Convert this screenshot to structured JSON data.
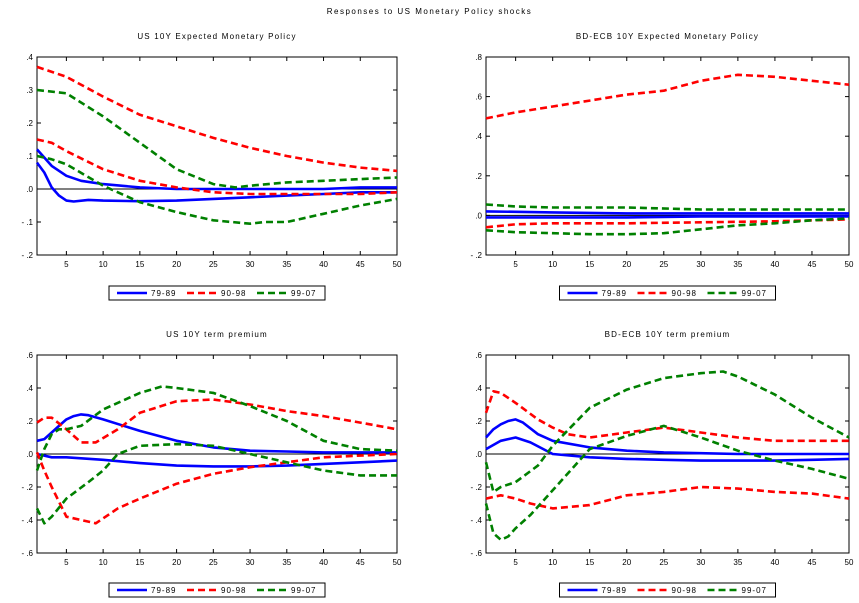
{
  "title": "Responses to US Monetary Policy shocks",
  "legend_labels": [
    "79-89",
    "90-98",
    "99-07"
  ],
  "colors": {
    "79-89": "#0000ff",
    "90-98": "#ff0000",
    "99-07": "#008000",
    "zero_line": "#000000"
  },
  "chart_data": [
    {
      "type": "line",
      "title": "US 10Y Expected Monetary Policy",
      "x_ticks": [
        5,
        10,
        15,
        20,
        25,
        30,
        35,
        40,
        45,
        50
      ],
      "xlim": [
        1,
        50
      ],
      "ylim": [
        -0.2,
        0.4
      ],
      "y_ticks": [
        -0.2,
        -0.1,
        0.0,
        0.1,
        0.2,
        0.3,
        0.4
      ],
      "y_tick_labels": [
        "- .2",
        "- .1",
        ".0",
        ".1",
        ".2",
        ".3",
        ".4"
      ],
      "legend_position": "bottom-center",
      "series": [
        {
          "name": "79-89",
          "style": "solid",
          "band": "upper",
          "x": [
            1,
            3,
            5,
            7,
            10,
            15,
            20,
            25,
            30,
            35,
            40,
            45,
            50
          ],
          "values": [
            0.12,
            0.07,
            0.04,
            0.025,
            0.015,
            0.005,
            0.0,
            0.0,
            0.0,
            0.0,
            0.0,
            0.005,
            0.005
          ]
        },
        {
          "name": "79-89",
          "style": "solid",
          "band": "lower",
          "x": [
            1,
            2,
            3,
            4,
            5,
            6,
            8,
            10,
            15,
            20,
            25,
            30,
            35,
            40,
            45,
            50
          ],
          "values": [
            0.08,
            0.05,
            0.005,
            -0.02,
            -0.035,
            -0.038,
            -0.033,
            -0.035,
            -0.037,
            -0.035,
            -0.03,
            -0.025,
            -0.02,
            -0.015,
            -0.01,
            -0.01
          ]
        },
        {
          "name": "90-98",
          "style": "dashed",
          "band": "upper",
          "x": [
            1,
            5,
            10,
            15,
            20,
            25,
            30,
            35,
            40,
            45,
            50
          ],
          "values": [
            0.37,
            0.34,
            0.28,
            0.225,
            0.19,
            0.155,
            0.125,
            0.1,
            0.08,
            0.065,
            0.055
          ]
        },
        {
          "name": "90-98",
          "style": "dashed",
          "band": "lower",
          "x": [
            1,
            3,
            5,
            10,
            15,
            20,
            25,
            30,
            35,
            40,
            45,
            50
          ],
          "values": [
            0.15,
            0.14,
            0.115,
            0.06,
            0.025,
            0.005,
            -0.01,
            -0.015,
            -0.015,
            -0.015,
            -0.015,
            -0.01
          ]
        },
        {
          "name": "99-07",
          "style": "dashed",
          "band": "upper",
          "x": [
            1,
            5,
            10,
            15,
            20,
            25,
            28,
            30,
            35,
            40,
            45,
            50
          ],
          "values": [
            0.3,
            0.29,
            0.22,
            0.14,
            0.06,
            0.015,
            0.005,
            0.01,
            0.02,
            0.025,
            0.03,
            0.035
          ]
        },
        {
          "name": "99-07",
          "style": "dashed",
          "band": "lower",
          "x": [
            1,
            3,
            5,
            10,
            15,
            20,
            25,
            30,
            32,
            35,
            40,
            45,
            50
          ],
          "values": [
            0.1,
            0.09,
            0.075,
            0.01,
            -0.04,
            -0.07,
            -0.095,
            -0.105,
            -0.1,
            -0.1,
            -0.075,
            -0.05,
            -0.03
          ]
        }
      ]
    },
    {
      "type": "line",
      "title": "BD-ECB 10Y Expected Monetary Policy",
      "x_ticks": [
        5,
        10,
        15,
        20,
        25,
        30,
        35,
        40,
        45,
        50
      ],
      "xlim": [
        1,
        50
      ],
      "ylim": [
        -0.2,
        0.8
      ],
      "y_ticks": [
        -0.2,
        0.0,
        0.2,
        0.4,
        0.6,
        0.8
      ],
      "y_tick_labels": [
        "- .2",
        ".0",
        ".2",
        ".4",
        ".6",
        ".8"
      ],
      "legend_position": "bottom-center",
      "series": [
        {
          "name": "79-89",
          "style": "solid",
          "band": "upper",
          "x": [
            1,
            10,
            20,
            30,
            40,
            50
          ],
          "values": [
            0.02,
            0.015,
            0.01,
            0.01,
            0.01,
            0.01
          ]
        },
        {
          "name": "79-89",
          "style": "solid",
          "band": "lower",
          "x": [
            1,
            10,
            20,
            30,
            40,
            50
          ],
          "values": [
            -0.01,
            -0.01,
            -0.01,
            -0.005,
            -0.005,
            -0.005
          ]
        },
        {
          "name": "90-98",
          "style": "dashed",
          "band": "upper",
          "x": [
            1,
            5,
            10,
            15,
            20,
            25,
            30,
            35,
            40,
            45,
            50
          ],
          "values": [
            0.49,
            0.52,
            0.55,
            0.58,
            0.61,
            0.63,
            0.68,
            0.71,
            0.7,
            0.68,
            0.66
          ]
        },
        {
          "name": "90-98",
          "style": "dashed",
          "band": "lower",
          "x": [
            1,
            5,
            10,
            20,
            30,
            40,
            50
          ],
          "values": [
            -0.06,
            -0.045,
            -0.04,
            -0.04,
            -0.035,
            -0.03,
            -0.02
          ]
        },
        {
          "name": "99-07",
          "style": "dashed",
          "band": "upper",
          "x": [
            1,
            5,
            10,
            20,
            30,
            40,
            50
          ],
          "values": [
            0.055,
            0.045,
            0.04,
            0.04,
            0.03,
            0.03,
            0.03
          ]
        },
        {
          "name": "99-07",
          "style": "dashed",
          "band": "lower",
          "x": [
            1,
            5,
            10,
            15,
            20,
            25,
            30,
            35,
            40,
            45,
            50
          ],
          "values": [
            -0.075,
            -0.085,
            -0.09,
            -0.095,
            -0.095,
            -0.09,
            -0.07,
            -0.05,
            -0.04,
            -0.025,
            -0.015
          ]
        }
      ]
    },
    {
      "type": "line",
      "title": "US 10Y term premium",
      "x_ticks": [
        5,
        10,
        15,
        20,
        25,
        30,
        35,
        40,
        45,
        50
      ],
      "xlim": [
        1,
        50
      ],
      "ylim": [
        -0.6,
        0.6
      ],
      "y_ticks": [
        -0.6,
        -0.4,
        -0.2,
        0.0,
        0.2,
        0.4,
        0.6
      ],
      "y_tick_labels": [
        "- .6",
        "- .4",
        "- .2",
        ".0",
        ".2",
        ".4",
        ".6"
      ],
      "legend_position": "bottom-center",
      "series": [
        {
          "name": "79-89",
          "style": "solid",
          "band": "upper",
          "x": [
            1,
            2,
            3,
            4,
            5,
            6,
            7,
            8,
            10,
            15,
            20,
            25,
            30,
            35,
            40,
            45,
            50
          ],
          "values": [
            0.08,
            0.09,
            0.13,
            0.17,
            0.21,
            0.23,
            0.24,
            0.235,
            0.21,
            0.14,
            0.08,
            0.04,
            0.02,
            0.015,
            0.01,
            0.01,
            0.01
          ]
        },
        {
          "name": "79-89",
          "style": "solid",
          "band": "lower",
          "x": [
            1,
            3,
            5,
            10,
            15,
            20,
            25,
            30,
            35,
            40,
            45,
            50
          ],
          "values": [
            0.0,
            -0.02,
            -0.02,
            -0.035,
            -0.055,
            -0.07,
            -0.075,
            -0.075,
            -0.07,
            -0.06,
            -0.05,
            -0.04
          ]
        },
        {
          "name": "90-98",
          "style": "dashed",
          "band": "upper",
          "x": [
            1,
            2,
            3,
            5,
            7,
            9,
            12,
            15,
            20,
            25,
            30,
            35,
            40,
            45,
            50
          ],
          "values": [
            0.19,
            0.22,
            0.22,
            0.15,
            0.07,
            0.07,
            0.15,
            0.25,
            0.32,
            0.33,
            0.3,
            0.26,
            0.23,
            0.19,
            0.15
          ]
        },
        {
          "name": "90-98",
          "style": "dashed",
          "band": "lower",
          "x": [
            1,
            2,
            3,
            5,
            7,
            9,
            10,
            12,
            15,
            20,
            25,
            30,
            35,
            40,
            45,
            50
          ],
          "values": [
            0.01,
            -0.1,
            -0.2,
            -0.38,
            -0.4,
            -0.42,
            -0.39,
            -0.33,
            -0.27,
            -0.18,
            -0.12,
            -0.08,
            -0.05,
            -0.02,
            -0.01,
            0.0
          ]
        },
        {
          "name": "99-07",
          "style": "dashed",
          "band": "upper",
          "x": [
            1,
            2,
            3,
            4,
            5,
            7,
            10,
            15,
            18,
            20,
            25,
            30,
            35,
            40,
            45,
            50
          ],
          "values": [
            -0.1,
            0.03,
            0.12,
            0.15,
            0.15,
            0.17,
            0.27,
            0.37,
            0.41,
            0.4,
            0.37,
            0.29,
            0.2,
            0.08,
            0.03,
            0.02
          ]
        },
        {
          "name": "99-07",
          "style": "dashed",
          "band": "lower",
          "x": [
            1,
            2,
            3,
            5,
            8,
            10,
            12,
            15,
            20,
            25,
            30,
            35,
            40,
            45,
            50
          ],
          "values": [
            -0.33,
            -0.42,
            -0.38,
            -0.27,
            -0.17,
            -0.1,
            0.0,
            0.05,
            0.06,
            0.05,
            0.0,
            -0.05,
            -0.1,
            -0.13,
            -0.13
          ]
        }
      ]
    },
    {
      "type": "line",
      "title": "BD-ECB 10Y term premium",
      "x_ticks": [
        5,
        10,
        15,
        20,
        25,
        30,
        35,
        40,
        45,
        50
      ],
      "xlim": [
        1,
        50
      ],
      "ylim": [
        -0.6,
        0.6
      ],
      "y_ticks": [
        -0.6,
        -0.4,
        -0.2,
        0.0,
        0.2,
        0.4,
        0.6
      ],
      "y_tick_labels": [
        "- .6",
        "- .4",
        "- .2",
        ".0",
        ".2",
        ".4",
        ".6"
      ],
      "legend_position": "bottom-center",
      "series": [
        {
          "name": "79-89",
          "style": "solid",
          "band": "upper",
          "x": [
            1,
            2,
            3,
            4,
            5,
            6,
            8,
            10,
            15,
            20,
            25,
            30,
            35,
            40,
            45,
            50
          ],
          "values": [
            0.1,
            0.15,
            0.18,
            0.2,
            0.21,
            0.19,
            0.12,
            0.08,
            0.04,
            0.02,
            0.01,
            0.005,
            0.0,
            0.0,
            0.0,
            0.0
          ]
        },
        {
          "name": "79-89",
          "style": "solid",
          "band": "lower",
          "x": [
            1,
            3,
            5,
            7,
            10,
            15,
            20,
            25,
            30,
            35,
            40,
            45,
            50
          ],
          "values": [
            0.03,
            0.08,
            0.1,
            0.07,
            0.0,
            -0.02,
            -0.03,
            -0.035,
            -0.04,
            -0.04,
            -0.04,
            -0.035,
            -0.03
          ]
        },
        {
          "name": "90-98",
          "style": "dashed",
          "band": "upper",
          "x": [
            1,
            2,
            3,
            5,
            8,
            10,
            12,
            15,
            20,
            25,
            30,
            35,
            40,
            45,
            50
          ],
          "values": [
            0.25,
            0.38,
            0.37,
            0.31,
            0.21,
            0.16,
            0.12,
            0.1,
            0.13,
            0.16,
            0.13,
            0.1,
            0.08,
            0.08,
            0.08
          ]
        },
        {
          "name": "90-98",
          "style": "dashed",
          "band": "lower",
          "x": [
            1,
            3,
            5,
            7,
            10,
            15,
            20,
            25,
            30,
            35,
            40,
            45,
            50
          ],
          "values": [
            -0.27,
            -0.25,
            -0.27,
            -0.3,
            -0.33,
            -0.31,
            -0.25,
            -0.23,
            -0.2,
            -0.21,
            -0.23,
            -0.24,
            -0.27
          ]
        },
        {
          "name": "99-07",
          "style": "dashed",
          "band": "upper",
          "x": [
            1,
            2,
            3,
            5,
            8,
            10,
            15,
            20,
            25,
            30,
            33,
            35,
            40,
            45,
            50
          ],
          "values": [
            -0.05,
            -0.23,
            -0.2,
            -0.17,
            -0.07,
            0.05,
            0.28,
            0.39,
            0.46,
            0.49,
            0.5,
            0.47,
            0.36,
            0.22,
            0.1
          ]
        },
        {
          "name": "99-07",
          "style": "dashed",
          "band": "lower",
          "x": [
            1,
            2,
            3,
            4,
            5,
            7,
            10,
            15,
            20,
            25,
            30,
            35,
            40,
            45,
            50
          ],
          "values": [
            -0.3,
            -0.48,
            -0.52,
            -0.5,
            -0.45,
            -0.37,
            -0.22,
            0.03,
            0.11,
            0.17,
            0.1,
            0.02,
            -0.04,
            -0.09,
            -0.15
          ]
        }
      ]
    }
  ]
}
